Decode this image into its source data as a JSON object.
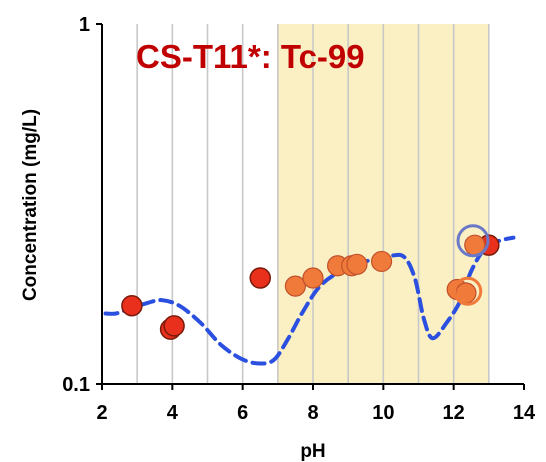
{
  "chart_data": {
    "type": "scatter",
    "title": "CS-T11*: Tc-99",
    "xlabel": "pH",
    "ylabel": "Concentration (mg/L)",
    "xlim": [
      2,
      14
    ],
    "ylim": [
      0.1,
      1
    ],
    "y_scale": "log",
    "x_ticks": [
      "2",
      "4",
      "6",
      "8",
      "10",
      "12",
      "14"
    ],
    "y_ticks": [
      "0.1",
      "1"
    ],
    "grid": "vertical",
    "shaded_region": {
      "x_range": [
        7,
        13
      ],
      "color": "#fbefc4"
    },
    "colors": {
      "title": "#c00000",
      "dark_point": "#e8301c",
      "orange_point": "#f07a3a",
      "point_edge": "#7a1a0a",
      "model_line": "#2b50e0",
      "open_circle_blue": "#6a78c8",
      "open_circle_orange": "#f07a3a",
      "grid": "#c8c8c8"
    },
    "series": [
      {
        "style": "dark-red-circle",
        "points": [
          {
            "x": 2.85,
            "y": 0.165
          },
          {
            "x": 3.95,
            "y": 0.142
          },
          {
            "x": 4.05,
            "y": 0.145
          },
          {
            "x": 6.5,
            "y": 0.197
          },
          {
            "x": 13.0,
            "y": 0.243
          }
        ]
      },
      {
        "style": "orange-circle",
        "points": [
          {
            "x": 7.5,
            "y": 0.187
          },
          {
            "x": 8.0,
            "y": 0.197
          },
          {
            "x": 8.7,
            "y": 0.213
          },
          {
            "x": 9.1,
            "y": 0.213
          },
          {
            "x": 9.25,
            "y": 0.215
          },
          {
            "x": 9.95,
            "y": 0.219
          },
          {
            "x": 12.1,
            "y": 0.183
          },
          {
            "x": 12.35,
            "y": 0.179
          },
          {
            "x": 12.6,
            "y": 0.243
          }
        ]
      },
      {
        "style": "open-circle-blue",
        "points": [
          {
            "x": 12.55,
            "y": 0.25
          }
        ]
      },
      {
        "style": "open-circle-orange",
        "points": [
          {
            "x": 12.4,
            "y": 0.181
          }
        ]
      },
      {
        "style": "dashed-model-line",
        "points": [
          {
            "x": 2.1,
            "y": 0.157
          },
          {
            "x": 2.4,
            "y": 0.157
          },
          {
            "x": 2.8,
            "y": 0.162
          },
          {
            "x": 3.3,
            "y": 0.168
          },
          {
            "x": 3.7,
            "y": 0.171
          },
          {
            "x": 4.2,
            "y": 0.165
          },
          {
            "x": 4.8,
            "y": 0.148
          },
          {
            "x": 5.4,
            "y": 0.128
          },
          {
            "x": 6.0,
            "y": 0.117
          },
          {
            "x": 6.5,
            "y": 0.114
          },
          {
            "x": 6.9,
            "y": 0.117
          },
          {
            "x": 7.3,
            "y": 0.134
          },
          {
            "x": 7.7,
            "y": 0.158
          },
          {
            "x": 8.2,
            "y": 0.187
          },
          {
            "x": 8.8,
            "y": 0.206
          },
          {
            "x": 9.5,
            "y": 0.219
          },
          {
            "x": 10.2,
            "y": 0.227
          },
          {
            "x": 10.6,
            "y": 0.225
          },
          {
            "x": 10.9,
            "y": 0.196
          },
          {
            "x": 11.15,
            "y": 0.152
          },
          {
            "x": 11.4,
            "y": 0.134
          },
          {
            "x": 11.8,
            "y": 0.148
          },
          {
            "x": 12.2,
            "y": 0.171
          },
          {
            "x": 12.5,
            "y": 0.206
          },
          {
            "x": 12.9,
            "y": 0.239
          },
          {
            "x": 13.3,
            "y": 0.25
          },
          {
            "x": 13.7,
            "y": 0.255
          }
        ]
      }
    ]
  }
}
